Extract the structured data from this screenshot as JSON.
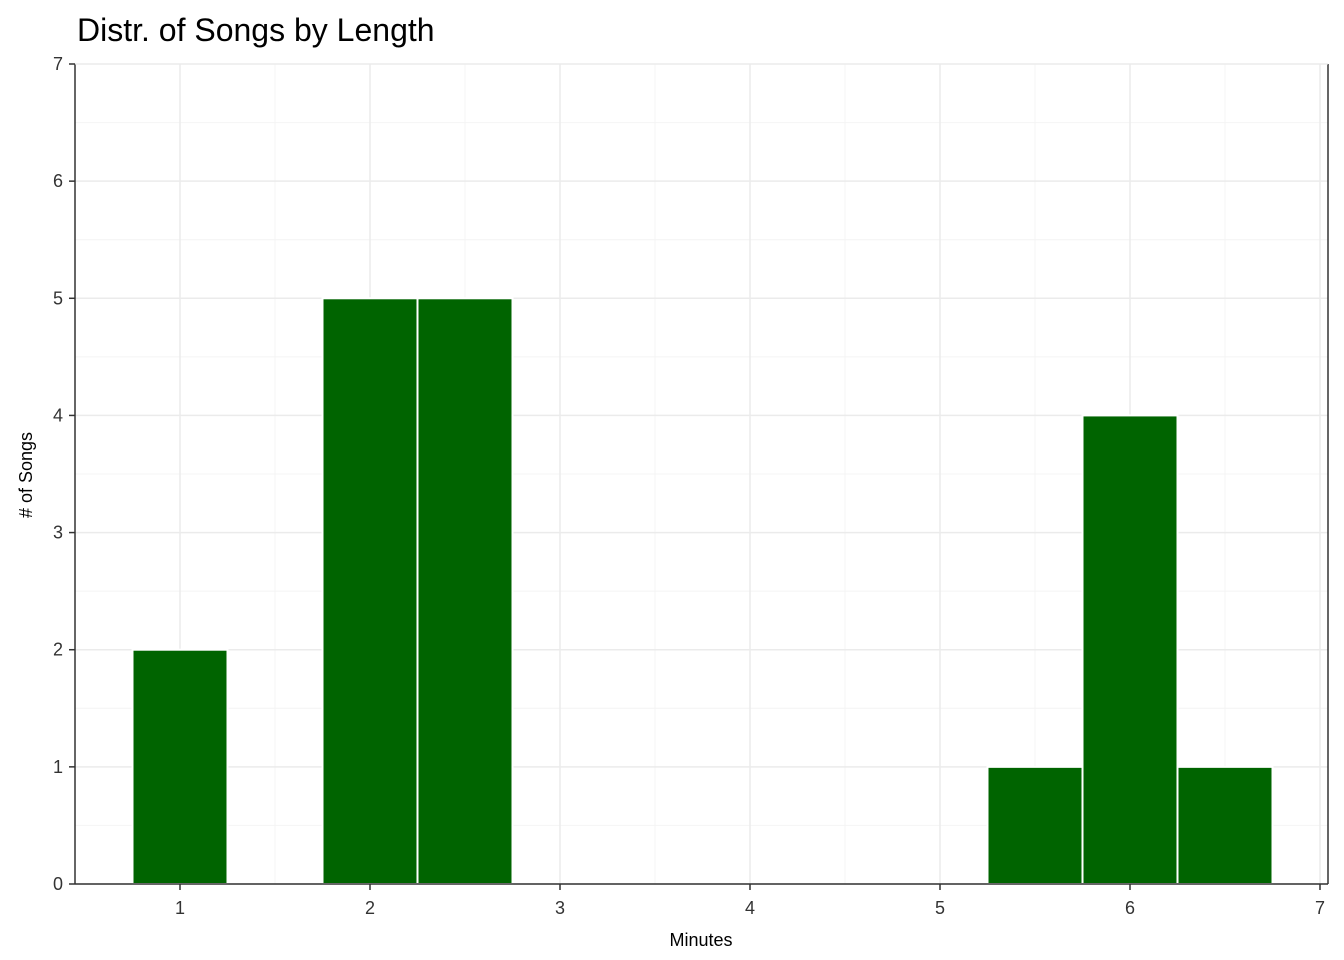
{
  "chart_data": {
    "type": "bar",
    "title": "Distr. of Songs by Length",
    "xlabel": "Minutes",
    "ylabel": "# of Songs",
    "bin_width": 0.5,
    "bins": [
      {
        "start": 0.75,
        "end": 1.25,
        "count": 2
      },
      {
        "start": 1.75,
        "end": 2.25,
        "count": 5
      },
      {
        "start": 2.25,
        "end": 2.75,
        "count": 5
      },
      {
        "start": 5.25,
        "end": 5.75,
        "count": 1
      },
      {
        "start": 5.75,
        "end": 6.25,
        "count": 4
      },
      {
        "start": 6.25,
        "end": 6.75,
        "count": 1
      }
    ],
    "xlim": [
      0.5,
      7
    ],
    "ylim": [
      0,
      7
    ],
    "x_ticks": [
      "1",
      "2",
      "3",
      "4",
      "5",
      "6",
      "7"
    ],
    "y_ticks": [
      "0",
      "1",
      "2",
      "3",
      "4",
      "5",
      "6",
      "7"
    ],
    "grid": true,
    "colors": {
      "bar_fill": "#006400",
      "bar_outline": "#ffffff",
      "grid_major": "#ebebeb",
      "grid_minor": "#f4f4f4",
      "panel_border": "#333333"
    }
  }
}
